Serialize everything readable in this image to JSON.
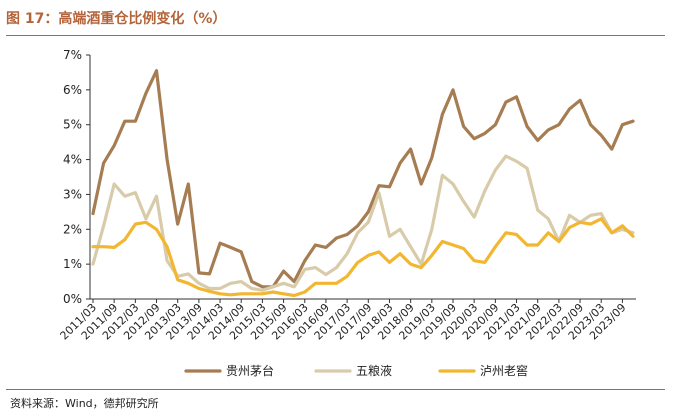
{
  "title": "图 17：高端酒重仓比例变化（%）",
  "source": "资料来源：Wind，德邦研究所",
  "chart_data": {
    "type": "line",
    "x": [
      "2011/03",
      "2011/06",
      "2011/09",
      "2011/12",
      "2012/03",
      "2012/06",
      "2012/09",
      "2012/12",
      "2013/03",
      "2013/06",
      "2013/09",
      "2013/12",
      "2014/03",
      "2014/06",
      "2014/09",
      "2014/12",
      "2015/03",
      "2015/06",
      "2015/09",
      "2015/12",
      "2016/03",
      "2016/06",
      "2016/09",
      "2016/12",
      "2017/03",
      "2017/06",
      "2017/09",
      "2017/12",
      "2018/03",
      "2018/06",
      "2018/09",
      "2018/12",
      "2019/03",
      "2019/06",
      "2019/09",
      "2019/12",
      "2020/03",
      "2020/06",
      "2020/09",
      "2020/12",
      "2021/03",
      "2021/06",
      "2021/09",
      "2021/12",
      "2022/03",
      "2022/06",
      "2022/09",
      "2022/12",
      "2023/03",
      "2023/06",
      "2023/09",
      "2023/12"
    ],
    "tick_labels": [
      "2011/03",
      "2011/09",
      "2012/03",
      "2012/09",
      "2013/03",
      "2013/09",
      "2014/03",
      "2014/09",
      "2015/03",
      "2015/09",
      "2016/03",
      "2016/09",
      "2017/03",
      "2017/09",
      "2018/03",
      "2018/09",
      "2019/03",
      "2019/09",
      "2020/03",
      "2020/09",
      "2021/03",
      "2021/09",
      "2022/03",
      "2022/09",
      "2023/03",
      "2023/09"
    ],
    "y_ticks": [
      "0%",
      "1%",
      "2%",
      "3%",
      "4%",
      "5%",
      "6%",
      "7%"
    ],
    "ylim": [
      0,
      7
    ],
    "series": [
      {
        "name": "贵州茅台",
        "color": "#a67c52",
        "values": [
          2.45,
          3.9,
          4.4,
          5.1,
          5.1,
          5.9,
          6.55,
          4.0,
          2.15,
          3.3,
          0.75,
          0.72,
          1.6,
          1.48,
          1.35,
          0.5,
          0.35,
          0.35,
          0.8,
          0.5,
          1.1,
          1.55,
          1.48,
          1.75,
          1.85,
          2.1,
          2.5,
          3.25,
          3.22,
          3.9,
          4.3,
          3.3,
          4.05,
          5.3,
          6.0,
          4.95,
          4.6,
          4.75,
          5.0,
          5.65,
          5.8,
          4.95,
          4.55,
          4.85,
          5.0,
          5.45,
          5.7,
          5.0,
          4.7,
          4.3,
          5.0,
          5.1
        ]
      },
      {
        "name": "五粮液",
        "color": "#d8cbaa",
        "values": [
          1.0,
          2.1,
          3.3,
          2.95,
          3.05,
          2.3,
          2.95,
          1.1,
          0.65,
          0.72,
          0.45,
          0.3,
          0.3,
          0.45,
          0.5,
          0.3,
          0.25,
          0.35,
          0.45,
          0.35,
          0.85,
          0.9,
          0.7,
          0.9,
          1.3,
          1.9,
          2.2,
          3.05,
          1.8,
          2.0,
          1.5,
          1.0,
          2.0,
          3.55,
          3.3,
          2.8,
          2.35,
          3.1,
          3.7,
          4.1,
          3.95,
          3.75,
          2.55,
          2.3,
          1.65,
          2.4,
          2.2,
          2.4,
          2.45,
          1.9,
          2.0,
          1.9
        ]
      },
      {
        "name": "泸州老窖",
        "color": "#f2b630",
        "values": [
          1.5,
          1.5,
          1.48,
          1.7,
          2.15,
          2.2,
          2.0,
          1.5,
          0.55,
          0.45,
          0.3,
          0.22,
          0.15,
          0.12,
          0.15,
          0.15,
          0.15,
          0.2,
          0.15,
          0.1,
          0.2,
          0.45,
          0.45,
          0.45,
          0.65,
          1.05,
          1.25,
          1.35,
          1.05,
          1.3,
          1.0,
          0.9,
          1.25,
          1.65,
          1.55,
          1.45,
          1.1,
          1.05,
          1.5,
          1.9,
          1.85,
          1.55,
          1.55,
          1.9,
          1.65,
          2.05,
          2.2,
          2.15,
          2.3,
          1.9,
          2.1,
          1.8
        ]
      }
    ],
    "legend_position": "bottom",
    "grid": false
  }
}
